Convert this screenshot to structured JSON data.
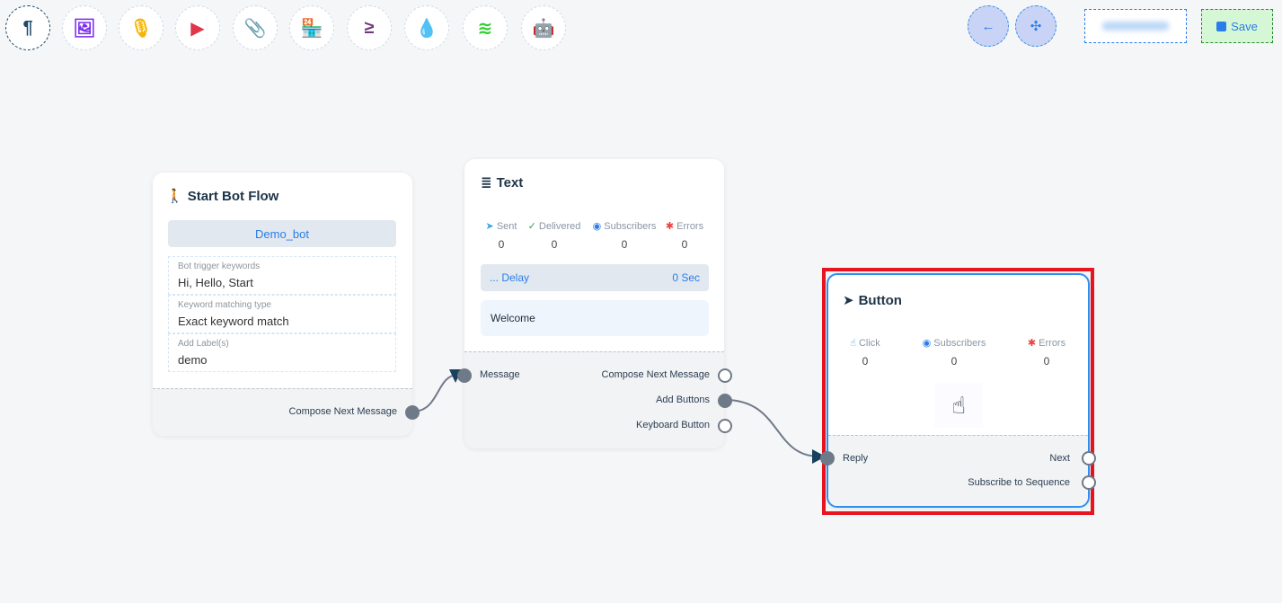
{
  "toolbar": {
    "tools": [
      {
        "icon": "paragraph-icon",
        "glyph": "¶",
        "color": "#1d4a6b"
      },
      {
        "icon": "image-icon",
        "glyph": "🖼",
        "color": "#7a2cf2"
      },
      {
        "icon": "microphone-icon",
        "glyph": "🎙",
        "color": "#f7b500"
      },
      {
        "icon": "youtube-icon",
        "glyph": "▶",
        "color": "#e0364a"
      },
      {
        "icon": "paperclip-icon",
        "glyph": "📎",
        "color": "#1e9e4a"
      },
      {
        "icon": "store-icon",
        "glyph": "🏪",
        "color": "#fd7e14"
      },
      {
        "icon": "greater-equal-icon",
        "glyph": "≥",
        "color": "#6f3b7b"
      },
      {
        "icon": "drop-icon",
        "glyph": "💧",
        "color": "#d1123f"
      },
      {
        "icon": "stack-icon",
        "glyph": "≋",
        "color": "#2ed12e"
      },
      {
        "icon": "robot-icon",
        "glyph": "🤖",
        "color": "#1515e8"
      }
    ],
    "back_icon": "←",
    "collapse_icon": "✣",
    "save_label": "Save"
  },
  "start_node": {
    "title": "Start Bot Flow",
    "bot_name": "Demo_bot",
    "fields": [
      {
        "label": "Bot trigger keywords",
        "value": "Hi, Hello, Start"
      },
      {
        "label": "Keyword matching type",
        "value": "Exact keyword match"
      },
      {
        "label": "Add Label(s)",
        "value": "demo"
      }
    ],
    "output": "Compose Next Message"
  },
  "text_node": {
    "title": "Text",
    "stats": [
      {
        "label": "Sent",
        "value": "0",
        "icon": "➤",
        "color": "#3ba3f0"
      },
      {
        "label": "Delivered",
        "value": "0",
        "icon": "✓",
        "color": "#28a745"
      },
      {
        "label": "Subscribers",
        "value": "0",
        "icon": "◉",
        "color": "#2b7de9"
      },
      {
        "label": "Errors",
        "value": "0",
        "icon": "✱",
        "color": "#f03e3e"
      }
    ],
    "delay_label": "... Delay",
    "delay_value": "0 Sec",
    "message": "Welcome",
    "input": "Message",
    "outputs": [
      "Compose Next Message",
      "Add Buttons",
      "Keyboard Button"
    ]
  },
  "button_node": {
    "title": "Button",
    "stats": [
      {
        "label": "Click",
        "value": "0",
        "icon": "☝",
        "color": "#3ba3f0"
      },
      {
        "label": "Subscribers",
        "value": "0",
        "icon": "◉",
        "color": "#2b7de9"
      },
      {
        "label": "Errors",
        "value": "0",
        "icon": "✱",
        "color": "#f03e3e"
      }
    ],
    "input": "Reply",
    "outputs": [
      "Next",
      "Subscribe to Sequence"
    ]
  },
  "colors": {
    "edge": "#6f7a88",
    "selected": "#2e8ef0",
    "highlight": "#e8141f"
  }
}
